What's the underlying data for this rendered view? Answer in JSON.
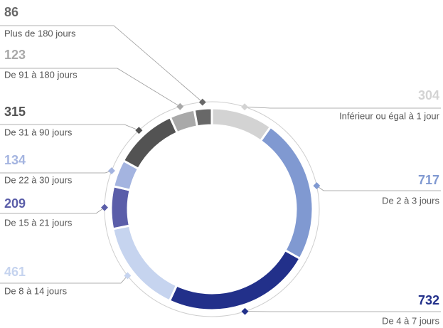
{
  "chart_data": {
    "type": "donut",
    "categories": [
      "Inférieur ou égal à 1 jour",
      "De 2 à 3 jours",
      "De 4 à 7 jours",
      "De 8 à 14 jours",
      "De 15 à 21 jours",
      "De 22 à 30 jours",
      "De 31 à 90 jours",
      "De 91 à 180 jours",
      "Plus de 180 jours"
    ],
    "values": [
      304,
      717,
      732,
      461,
      209,
      134,
      315,
      123,
      86
    ],
    "colors": [
      "#d3d3d3",
      "#8099d1",
      "#22308a",
      "#c6d4ef",
      "#5b5ea9",
      "#a4b4e0",
      "#535353",
      "#a9a9a9",
      "#686868"
    ]
  }
}
